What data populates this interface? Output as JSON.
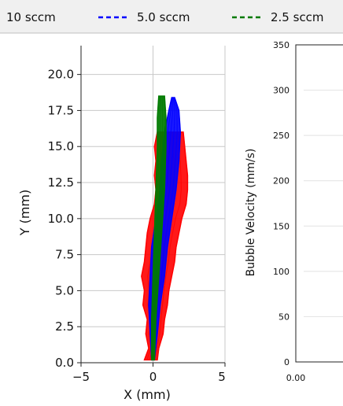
{
  "legend": {
    "entries": [
      {
        "label": "10 sccm",
        "color": "#ff0000",
        "style": "solid"
      },
      {
        "label": "5.0 sccm",
        "color": "#0000ff",
        "style": "dashed"
      },
      {
        "label": "2.5 sccm",
        "color": "#007a00",
        "style": "dashed"
      }
    ],
    "placement": "top"
  },
  "chart_data": [
    {
      "type": "line",
      "title": "",
      "xlabel": "X (mm)",
      "ylabel": "Y (mm)",
      "xlim": [
        -5,
        5
      ],
      "ylim": [
        0,
        22
      ],
      "xticks": [
        -5,
        0,
        5
      ],
      "xtick_labels": [
        "−5",
        "0",
        "5"
      ],
      "yticks": [
        0,
        2.5,
        5,
        7.5,
        10,
        12.5,
        15,
        17.5,
        20
      ],
      "ytick_labels": [
        "0.0",
        "2.5",
        "5.0",
        "7.5",
        "10.0",
        "12.5",
        "15.0",
        "17.5",
        "20.0"
      ],
      "grid": true,
      "series": [
        {
          "name": "10 sccm",
          "color": "#ff0000",
          "left_edge": [
            [
              -0.6,
              0.2
            ],
            [
              -0.3,
              1
            ],
            [
              -0.5,
              2
            ],
            [
              -0.4,
              3
            ],
            [
              -0.7,
              4
            ],
            [
              -0.6,
              5
            ],
            [
              -0.8,
              6
            ],
            [
              -0.6,
              7
            ],
            [
              -0.5,
              8
            ],
            [
              -0.4,
              9
            ],
            [
              -0.2,
              10
            ],
            [
              0.1,
              11
            ],
            [
              0.2,
              12
            ],
            [
              0.1,
              13
            ],
            [
              0.2,
              14
            ],
            [
              0.1,
              15
            ],
            [
              0.3,
              16
            ]
          ],
          "right_edge": [
            [
              0.3,
              0.2
            ],
            [
              0.4,
              1
            ],
            [
              0.7,
              2
            ],
            [
              0.8,
              3
            ],
            [
              1.0,
              4
            ],
            [
              1.1,
              5
            ],
            [
              1.3,
              6
            ],
            [
              1.5,
              7
            ],
            [
              1.6,
              8
            ],
            [
              1.8,
              9
            ],
            [
              2.0,
              10
            ],
            [
              2.3,
              11
            ],
            [
              2.4,
              12
            ],
            [
              2.4,
              13
            ],
            [
              2.3,
              14
            ],
            [
              2.2,
              15
            ],
            [
              2.1,
              16
            ]
          ]
        },
        {
          "name": "5.0 sccm",
          "color": "#0000ff",
          "left_edge": [
            [
              -0.1,
              0.2
            ],
            [
              -0.2,
              2
            ],
            [
              -0.3,
              4
            ],
            [
              -0.2,
              6
            ],
            [
              -0.1,
              8
            ],
            [
              0.2,
              10
            ],
            [
              0.5,
              12
            ],
            [
              0.6,
              14
            ],
            [
              0.8,
              16
            ],
            [
              1.1,
              17.5
            ],
            [
              1.3,
              18.4
            ]
          ],
          "right_edge": [
            [
              0.1,
              0.2
            ],
            [
              0.3,
              2
            ],
            [
              0.5,
              4
            ],
            [
              0.8,
              6
            ],
            [
              1.0,
              8
            ],
            [
              1.3,
              10
            ],
            [
              1.6,
              12
            ],
            [
              1.8,
              14
            ],
            [
              1.9,
              16
            ],
            [
              1.8,
              17.5
            ],
            [
              1.5,
              18.4
            ]
          ]
        },
        {
          "name": "2.5 sccm",
          "color": "#007a00",
          "left_edge": [
            [
              -0.1,
              0.2
            ],
            [
              -0.1,
              3
            ],
            [
              0.0,
              6
            ],
            [
              0.1,
              9
            ],
            [
              0.2,
              12
            ],
            [
              0.3,
              15
            ],
            [
              0.3,
              17
            ],
            [
              0.4,
              18.5
            ]
          ],
          "right_edge": [
            [
              0.1,
              0.2
            ],
            [
              0.2,
              3
            ],
            [
              0.4,
              6
            ],
            [
              0.6,
              9
            ],
            [
              0.8,
              12
            ],
            [
              0.9,
              15
            ],
            [
              0.9,
              17
            ],
            [
              0.8,
              18.5
            ]
          ]
        }
      ]
    },
    {
      "type": "line",
      "title": "",
      "xlabel": "",
      "ylabel": "Bubble Velocity (mm/s)",
      "ylim": [
        0,
        350
      ],
      "yticks": [
        0,
        50,
        100,
        150,
        200,
        250,
        300,
        350
      ],
      "ytick_labels": [
        "0",
        "50",
        "100",
        "150",
        "200",
        "250",
        "300",
        "350"
      ],
      "xticks": [
        0
      ],
      "xtick_labels": [
        "0.00"
      ],
      "grid": true,
      "series": []
    }
  ]
}
